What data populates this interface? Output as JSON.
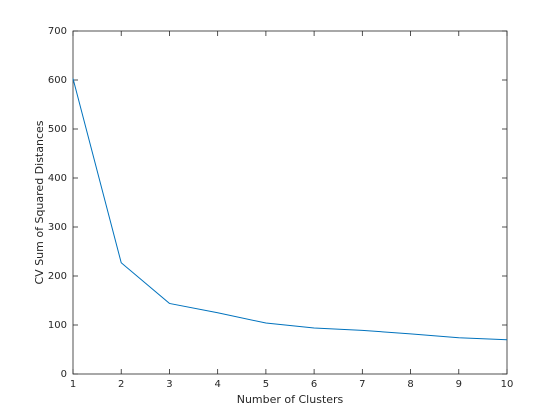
{
  "chart_data": {
    "type": "line",
    "xlabel": "Number of Clusters",
    "ylabel": "CV Sum of Squared Distances",
    "x": [
      1,
      2,
      3,
      4,
      5,
      6,
      7,
      8,
      9,
      10
    ],
    "values": [
      603,
      227,
      144,
      125,
      104,
      94,
      89,
      82,
      74,
      70
    ],
    "color": "#0072bd",
    "xlim": [
      1,
      10
    ],
    "xticks": [
      1,
      2,
      3,
      4,
      5,
      6,
      7,
      8,
      9,
      10
    ],
    "ylim": [
      0,
      700
    ],
    "yticks": [
      0,
      100,
      200,
      300,
      400,
      500,
      600,
      700
    ],
    "grid": false
  }
}
